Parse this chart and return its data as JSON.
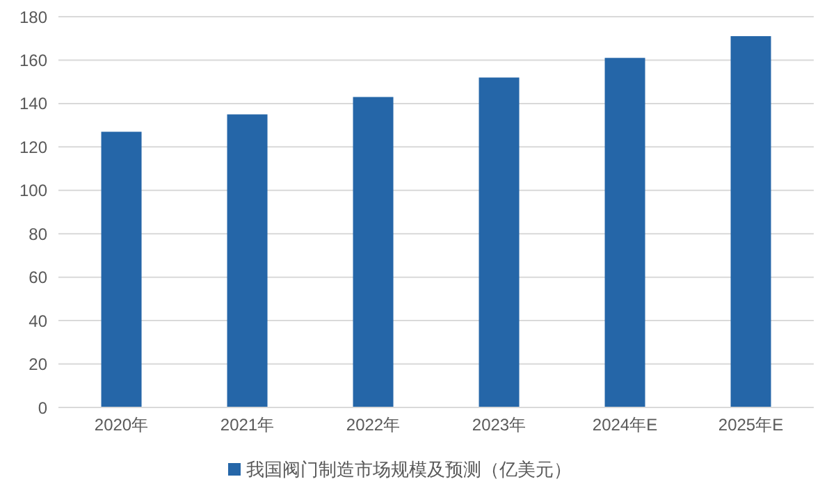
{
  "chart_data": {
    "type": "bar",
    "categories": [
      "2020年",
      "2021年",
      "2022年",
      "2023年",
      "2024年E",
      "2025年E"
    ],
    "series": [
      {
        "name": "我国阀门制造市场规模及预测（亿美元）",
        "color": "#2566a8",
        "values": [
          127,
          135,
          143,
          152,
          161,
          171
        ]
      }
    ],
    "ylim": [
      0,
      180
    ],
    "yticks": [
      0,
      20,
      40,
      60,
      80,
      100,
      120,
      140,
      160,
      180
    ],
    "grid": "y",
    "legend": "bottom"
  }
}
